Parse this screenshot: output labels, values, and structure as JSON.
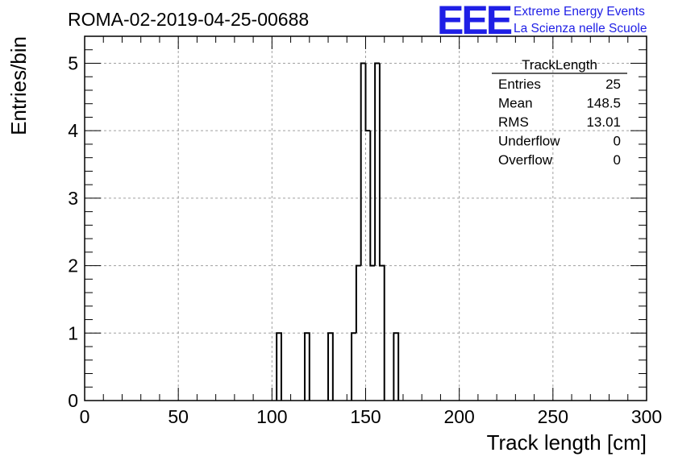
{
  "header": {
    "run_title": "ROMA-02-2019-04-25-00688",
    "logo_text": "EEE",
    "logo_line1": "Extreme Energy Events",
    "logo_line2": "La Scienza nelle Scuole",
    "logo_color": "#1f1fe6"
  },
  "stats_box": {
    "title": "TrackLength",
    "rows": [
      {
        "label": "Entries",
        "value": "25"
      },
      {
        "label": "Mean",
        "value": "148.5"
      },
      {
        "label": "RMS",
        "value": "13.01"
      },
      {
        "label": "Underflow",
        "value": "0"
      },
      {
        "label": "Overflow",
        "value": "0"
      }
    ]
  },
  "chart_data": {
    "type": "bar",
    "style": "step-histogram",
    "xlabel": "Track length [cm]",
    "ylabel": "Entries/bin",
    "xlim": [
      0,
      300
    ],
    "ylim": [
      0,
      5.4
    ],
    "xticks": [
      0,
      50,
      100,
      150,
      200,
      250,
      300
    ],
    "yticks": [
      0,
      1,
      2,
      3,
      4,
      5
    ],
    "grid": true,
    "bin_width": 2.5,
    "bins": [
      {
        "x": 102.5,
        "count": 1
      },
      {
        "x": 117.5,
        "count": 1
      },
      {
        "x": 130.0,
        "count": 1
      },
      {
        "x": 142.5,
        "count": 1
      },
      {
        "x": 145.0,
        "count": 2
      },
      {
        "x": 147.5,
        "count": 5
      },
      {
        "x": 150.0,
        "count": 4
      },
      {
        "x": 152.5,
        "count": 2
      },
      {
        "x": 155.0,
        "count": 5
      },
      {
        "x": 157.5,
        "count": 2
      },
      {
        "x": 160.0,
        "count": 0
      },
      {
        "x": 165.0,
        "count": 1
      }
    ]
  }
}
